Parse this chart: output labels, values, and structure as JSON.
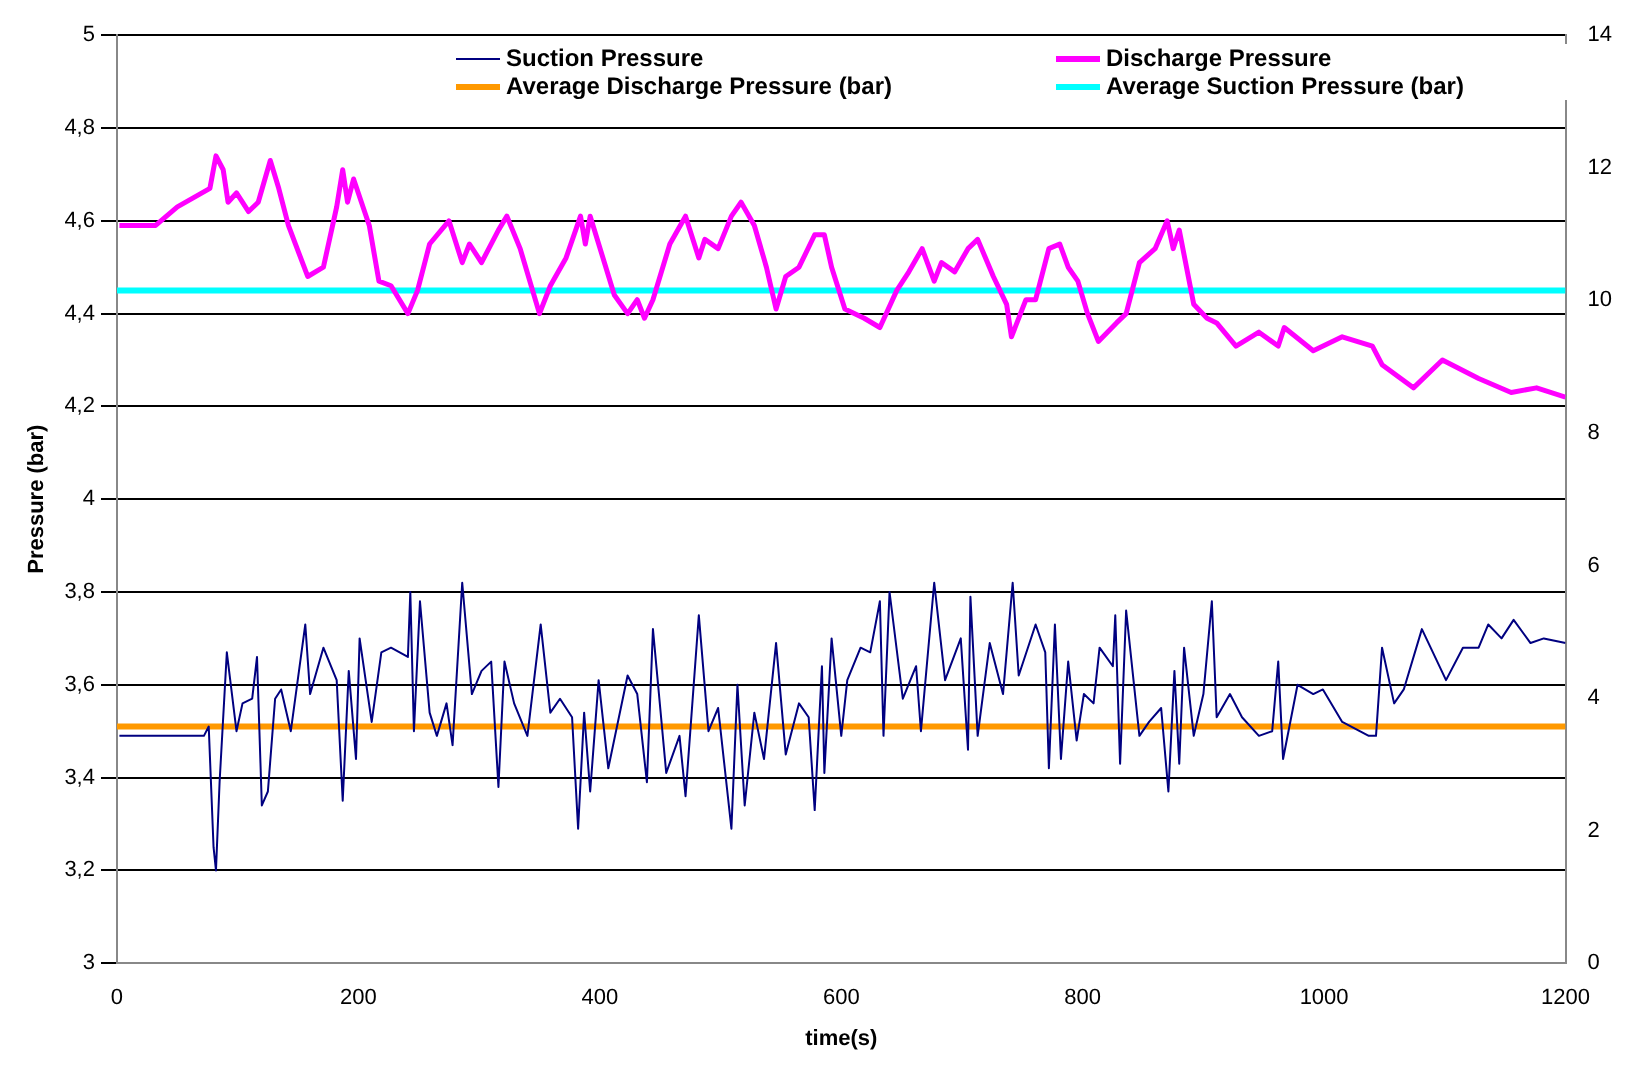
{
  "chart_data": {
    "type": "line",
    "xlabel": "time(s)",
    "ylabel": "Pressure (bar)",
    "xlim": [
      0,
      1200
    ],
    "xticks": [
      0,
      200,
      400,
      600,
      800,
      1000,
      1200
    ],
    "ylim": [
      3,
      5
    ],
    "yticks": [
      3,
      {
        "value": 3.2,
        "label": "3,2"
      },
      {
        "value": 3.4,
        "label": "3,4"
      },
      {
        "value": 3.6,
        "label": "3,6"
      },
      {
        "value": 3.8,
        "label": "3,8"
      },
      4,
      {
        "value": 4.2,
        "label": "4,2"
      },
      {
        "value": 4.4,
        "label": "4,4"
      },
      {
        "value": 4.6,
        "label": "4,6"
      },
      {
        "value": 4.8,
        "label": "4,8"
      },
      5
    ],
    "y2lim": [
      0,
      14
    ],
    "y2ticks": [
      0,
      2,
      4,
      6,
      8,
      10,
      12,
      14
    ],
    "grid": "y",
    "legend": "top",
    "marker": "none",
    "line_style": "solid",
    "series": [
      {
        "name": "Suction Pressure",
        "color": "#000080",
        "x": [
          2,
          72,
          76,
          80,
          82,
          85,
          91,
          99,
          104,
          112,
          116,
          120,
          125,
          131,
          136,
          144,
          156,
          160,
          171,
          182,
          187,
          192,
          198,
          201,
          211,
          219,
          227,
          241,
          243,
          246,
          251,
          259,
          265,
          273,
          278,
          286,
          294,
          302,
          310,
          316,
          321,
          329,
          340,
          351,
          359,
          367,
          377,
          382,
          387,
          392,
          399,
          407,
          423,
          431,
          439,
          444,
          455,
          466,
          471,
          482,
          490,
          498,
          509,
          514,
          520,
          528,
          536,
          546,
          554,
          565,
          573,
          578,
          584,
          586,
          592,
          600,
          605,
          616,
          624,
          632,
          635,
          640,
          651,
          662,
          666,
          677,
          686,
          699,
          705,
          707,
          713,
          723,
          734,
          742,
          747,
          761,
          769,
          772,
          777,
          782,
          788,
          795,
          801,
          809,
          814,
          825,
          827,
          831,
          836,
          847,
          855,
          865,
          871,
          876,
          880,
          884,
          892,
          900,
          907,
          911,
          922,
          932,
          946,
          957,
          962,
          966,
          978,
          991,
          999,
          1015,
          1037,
          1043,
          1048,
          1058,
          1066,
          1081,
          1101,
          1115,
          1128,
          1136,
          1147,
          1157,
          1171,
          1182,
          1200
        ],
        "values": [
          3.49,
          3.49,
          3.51,
          3.25,
          3.2,
          3.39,
          3.67,
          3.5,
          3.56,
          3.57,
          3.66,
          3.34,
          3.37,
          3.57,
          3.59,
          3.5,
          3.73,
          3.58,
          3.68,
          3.61,
          3.35,
          3.63,
          3.44,
          3.7,
          3.52,
          3.67,
          3.68,
          3.66,
          3.8,
          3.5,
          3.78,
          3.54,
          3.49,
          3.56,
          3.47,
          3.82,
          3.58,
          3.63,
          3.65,
          3.38,
          3.65,
          3.56,
          3.49,
          3.73,
          3.54,
          3.57,
          3.53,
          3.29,
          3.54,
          3.37,
          3.61,
          3.42,
          3.62,
          3.58,
          3.39,
          3.72,
          3.41,
          3.49,
          3.36,
          3.75,
          3.5,
          3.55,
          3.29,
          3.6,
          3.34,
          3.54,
          3.44,
          3.69,
          3.45,
          3.56,
          3.53,
          3.33,
          3.64,
          3.41,
          3.7,
          3.49,
          3.61,
          3.68,
          3.67,
          3.78,
          3.49,
          3.8,
          3.57,
          3.64,
          3.5,
          3.82,
          3.61,
          3.7,
          3.46,
          3.79,
          3.49,
          3.69,
          3.58,
          3.82,
          3.62,
          3.73,
          3.67,
          3.42,
          3.73,
          3.44,
          3.65,
          3.48,
          3.58,
          3.56,
          3.68,
          3.64,
          3.75,
          3.43,
          3.76,
          3.49,
          3.52,
          3.55,
          3.37,
          3.63,
          3.43,
          3.68,
          3.49,
          3.58,
          3.78,
          3.53,
          3.58,
          3.53,
          3.49,
          3.5,
          3.65,
          3.44,
          3.6,
          3.58,
          3.59,
          3.52,
          3.49,
          3.49,
          3.68,
          3.56,
          3.59,
          3.72,
          3.61,
          3.68,
          3.68,
          3.73,
          3.7,
          3.74,
          3.69,
          3.7,
          3.69
        ]
      },
      {
        "name": "Discharge Pressure",
        "color": "#ff00ff",
        "x": [
          2,
          32,
          50,
          77,
          82,
          88,
          92,
          99,
          109,
          117,
          127,
          134,
          142,
          158,
          171,
          182,
          187,
          191,
          196,
          209,
          217,
          227,
          241,
          249,
          259,
          275,
          286,
          292,
          302,
          316,
          323,
          334,
          350,
          359,
          372,
          384,
          388,
          392,
          412,
          423,
          431,
          437,
          444,
          458,
          471,
          482,
          487,
          498,
          509,
          517,
          528,
          538,
          546,
          554,
          565,
          578,
          586,
          592,
          603,
          619,
          632,
          646,
          656,
          667,
          677,
          683,
          694,
          705,
          713,
          726,
          737,
          741,
          753,
          761,
          772,
          781,
          788,
          796,
          804,
          813,
          828,
          836,
          847,
          860,
          870,
          875,
          880,
          886,
          892,
          903,
          911,
          927,
          946,
          962,
          967,
          991,
          1015,
          1040,
          1048,
          1074,
          1098,
          1128,
          1155,
          1176,
          1200
        ],
        "values": [
          4.59,
          4.59,
          4.63,
          4.67,
          4.74,
          4.71,
          4.64,
          4.66,
          4.62,
          4.64,
          4.73,
          4.67,
          4.59,
          4.48,
          4.5,
          4.63,
          4.71,
          4.64,
          4.69,
          4.59,
          4.47,
          4.46,
          4.4,
          4.45,
          4.55,
          4.6,
          4.51,
          4.55,
          4.51,
          4.58,
          4.61,
          4.54,
          4.4,
          4.46,
          4.52,
          4.61,
          4.55,
          4.61,
          4.44,
          4.4,
          4.43,
          4.39,
          4.43,
          4.55,
          4.61,
          4.52,
          4.56,
          4.54,
          4.61,
          4.64,
          4.59,
          4.5,
          4.41,
          4.48,
          4.5,
          4.57,
          4.57,
          4.5,
          4.41,
          4.39,
          4.37,
          4.45,
          4.49,
          4.54,
          4.47,
          4.51,
          4.49,
          4.54,
          4.56,
          4.48,
          4.42,
          4.35,
          4.43,
          4.43,
          4.54,
          4.55,
          4.5,
          4.47,
          4.4,
          4.34,
          4.38,
          4.4,
          4.51,
          4.54,
          4.6,
          4.54,
          4.58,
          4.5,
          4.42,
          4.39,
          4.38,
          4.33,
          4.36,
          4.33,
          4.37,
          4.32,
          4.35,
          4.33,
          4.29,
          4.24,
          4.3,
          4.26,
          4.23,
          4.24,
          4.22
        ]
      },
      {
        "name": "Average Discharge Pressure (bar)",
        "color": "#ff9900",
        "x": [
          0,
          1200
        ],
        "values": [
          3.51,
          3.51
        ]
      },
      {
        "name": "Average Suction Pressure (bar)",
        "color": "#00ffff",
        "x": [
          0,
          1200
        ],
        "values": [
          4.45,
          4.45
        ]
      }
    ]
  }
}
